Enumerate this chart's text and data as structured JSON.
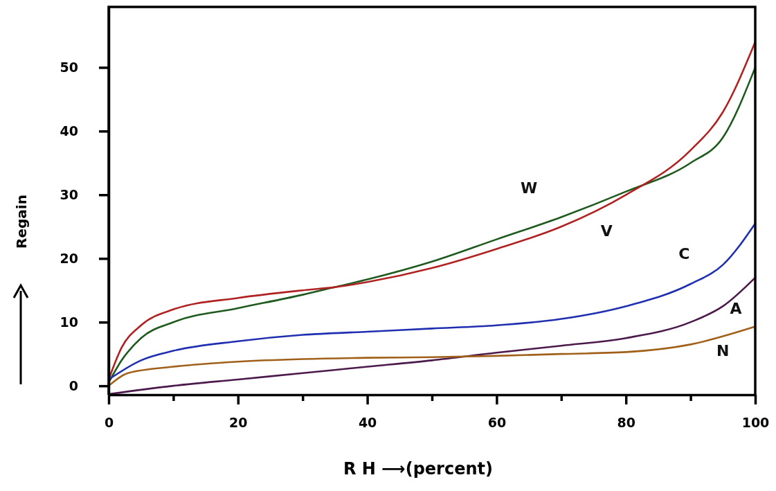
{
  "chart_data": {
    "type": "line",
    "xlabel": "R H ⟶(percent)",
    "ylabel": "Regain",
    "xlim": [
      0,
      100
    ],
    "ylim": [
      -1.4,
      59.5
    ],
    "xticks": [
      0,
      {
        "value": 10,
        "label": null
      },
      20,
      {
        "value": 30,
        "label": null
      },
      40,
      {
        "value": 50,
        "label": null
      },
      60,
      {
        "value": 70,
        "label": null
      },
      80,
      {
        "value": 90,
        "label": null
      },
      100
    ],
    "yticks": [
      0,
      10,
      20,
      30,
      40,
      50
    ],
    "grid": false,
    "legend": false,
    "marker": "none",
    "line_style": "solid",
    "series": [
      {
        "name": "W",
        "color": "#1e5a1e",
        "x": [
          0,
          2,
          5,
          10,
          20,
          30,
          35,
          40,
          50,
          60,
          70,
          80,
          90,
          95,
          100
        ],
        "values": [
          0.5,
          4,
          7.5,
          10,
          12.2,
          14.3,
          15.5,
          16.7,
          19.5,
          23,
          26.5,
          30.5,
          35,
          39,
          50
        ]
      },
      {
        "name": "V",
        "color": "#b02222",
        "x": [
          0,
          2,
          5,
          10,
          20,
          30,
          35,
          40,
          50,
          60,
          70,
          80,
          90,
          95,
          100
        ],
        "values": [
          1,
          6,
          9.5,
          12,
          13.8,
          15,
          15.5,
          16.3,
          18.5,
          21.5,
          25,
          30,
          37,
          43,
          54
        ]
      },
      {
        "name": "C",
        "color": "#1f2fb0",
        "x": [
          0,
          5,
          10,
          20,
          30,
          40,
          50,
          60,
          70,
          80,
          90,
          95,
          100
        ],
        "values": [
          1,
          4,
          5.5,
          7,
          8,
          8.5,
          9,
          9.5,
          10.5,
          12.5,
          16,
          19,
          25.5
        ]
      },
      {
        "name": "A",
        "color": "#4b1a4b",
        "x": [
          0,
          10,
          20,
          30,
          40,
          50,
          60,
          70,
          80,
          90,
          95,
          100
        ],
        "values": [
          -1.3,
          0,
          1,
          2,
          3,
          4,
          5.2,
          6.3,
          7.5,
          10,
          12.5,
          17
        ]
      },
      {
        "name": "N",
        "color": "#a0601a",
        "x": [
          0,
          3,
          10,
          20,
          30,
          40,
          50,
          60,
          70,
          80,
          90,
          100
        ],
        "values": [
          0,
          2,
          3,
          3.8,
          4.2,
          4.4,
          4.5,
          4.7,
          5,
          5.3,
          6.5,
          9.3
        ]
      }
    ]
  }
}
